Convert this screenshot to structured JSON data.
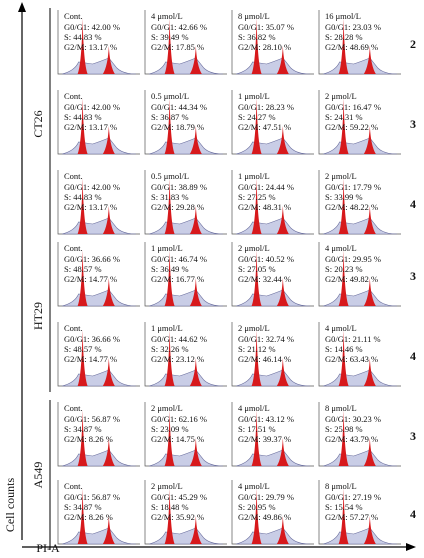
{
  "y_label": "Cell counts",
  "x_label": "PI-A",
  "groups": [
    {
      "label": "CT26",
      "rows": [
        {
          "number": "2",
          "panels": [
            {
              "condition": "Cont.",
              "lines": [
                "G0/G1: 42.00 %",
                "S: 44.83 %",
                "G2/M: 13.17 %"
              ]
            },
            {
              "condition": "4 μmol/L",
              "lines": [
                "G0/G1: 42.66 %",
                "S: 39.49 %",
                "G2/M: 17.85 %"
              ]
            },
            {
              "condition": "8 μmol/L",
              "lines": [
                "G0/G1: 35.07 %",
                "S: 36.82 %",
                "G2/M: 28.10 %"
              ]
            },
            {
              "condition": "16 μmol/L",
              "lines": [
                "G0/G1: 23.03 %",
                "S: 28.28 %",
                "G2/M: 48.69 %"
              ]
            }
          ]
        },
        {
          "number": "3",
          "panels": [
            {
              "condition": "Cont.",
              "lines": [
                "G0/G1: 42.00 %",
                "S: 44.83 %",
                "G2/M: 13.17 %"
              ]
            },
            {
              "condition": "0.5 μmol/L",
              "lines": [
                "G0/G1: 44.34 %",
                "S: 36.87 %",
                "G2/M: 18.79 %"
              ]
            },
            {
              "condition": "1 μmol/L",
              "lines": [
                "G0/G1: 28.23 %",
                "S: 24.27 %",
                "G2/M: 47.51 %"
              ]
            },
            {
              "condition": "2 μmol/L",
              "lines": [
                "G0/G1: 16.47 %",
                "S: 24.31 %",
                "G2/M: 59.22 %"
              ]
            }
          ]
        },
        {
          "number": "4",
          "panels": [
            {
              "condition": "Cont.",
              "lines": [
                "G0/G1: 42.00 %",
                "S: 44.83 %",
                "G2/M: 13.17 %"
              ]
            },
            {
              "condition": "0.5 μmol/L",
              "lines": [
                "G0/G1: 38.89 %",
                "S: 31.83 %",
                "G2/M: 29.28 %"
              ]
            },
            {
              "condition": "1 μmol/L",
              "lines": [
                "G0/G1: 24.44 %",
                "S: 27.25 %",
                "G2/M: 48.31 %"
              ]
            },
            {
              "condition": "2 μmol/L",
              "lines": [
                "G0/G1: 17.79 %",
                "S: 33.99 %",
                "G2/M: 48.22 %"
              ]
            }
          ]
        }
      ]
    },
    {
      "label": "HT29",
      "rows": [
        {
          "number": "3",
          "panels": [
            {
              "condition": "Cont.",
              "lines": [
                "G0/G1: 36.66 %",
                "S: 48.57 %",
                "G2/M: 14.77 %"
              ]
            },
            {
              "condition": "1 μmol/L",
              "lines": [
                "G0/G1: 46.74 %",
                "S: 36.49 %",
                "G2/M: 16.77 %"
              ]
            },
            {
              "condition": "2 μmol/L",
              "lines": [
                "G0/G1: 40.52 %",
                "S: 27.05 %",
                "G2/M: 32.44 %"
              ]
            },
            {
              "condition": "4 μmol/L",
              "lines": [
                "G0/G1: 29.95 %",
                "S: 20.23 %",
                "G2/M: 49.82 %"
              ]
            }
          ]
        },
        {
          "number": "4",
          "panels": [
            {
              "condition": "Cont.",
              "lines": [
                "G0/G1: 36.66 %",
                "S: 48.57 %",
                "G2/M: 14.77 %"
              ]
            },
            {
              "condition": "1 μmol/L",
              "lines": [
                "G0/G1: 44.62 %",
                "S: 32.26 %",
                "G2/M: 23.12 %"
              ]
            },
            {
              "condition": "2 μmol/L",
              "lines": [
                "G0/G1: 32.74 %",
                "S: 21.12 %",
                "G2/M: 46.14 %"
              ]
            },
            {
              "condition": "4 μmol/L",
              "lines": [
                "G0/G1: 21.11 %",
                "S: 14.46 %",
                "G2/M: 63.43 %"
              ]
            }
          ]
        }
      ]
    },
    {
      "label": "A549",
      "rows": [
        {
          "number": "3",
          "panels": [
            {
              "condition": "Cont.",
              "lines": [
                "G0/G1: 56.87 %",
                "S: 34.87 %",
                "G2/M: 8.26 %"
              ]
            },
            {
              "condition": "2 μmol/L",
              "lines": [
                "G0/G1: 62.16 %",
                "S: 23.09 %",
                "G2/M: 14.75 %"
              ]
            },
            {
              "condition": "4 μmol/L",
              "lines": [
                "G0/G1: 43.12 %",
                "S: 17.51 %",
                "G2/M: 39.37 %"
              ]
            },
            {
              "condition": "8 μmol/L",
              "lines": [
                "G0/G1: 30.23 %",
                "S: 25.98 %",
                "G2/M: 43.79 %"
              ]
            }
          ]
        },
        {
          "number": "4",
          "panels": [
            {
              "condition": "Cont.",
              "lines": [
                "G0/G1: 56.87 %",
                "S: 34.87 %",
                "G2/M: 8.26 %"
              ]
            },
            {
              "condition": "2 μmol/L",
              "lines": [
                "G0/G1: 45.29 %",
                "S: 18.48 %",
                "G2/M: 35.92 %"
              ]
            },
            {
              "condition": "4 μmol/L",
              "lines": [
                "G0/G1: 29.79 %",
                "S: 20.95 %",
                "G2/M: 49.86 %"
              ]
            },
            {
              "condition": "8 μmol/L",
              "lines": [
                "G0/G1: 27.19 %",
                "S: 15.54 %",
                "G2/M: 57.27 %"
              ]
            }
          ]
        }
      ]
    }
  ]
}
